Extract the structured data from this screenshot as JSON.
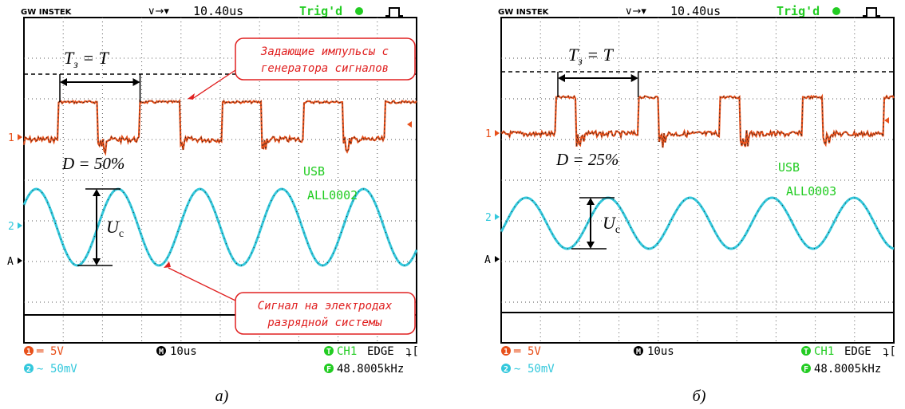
{
  "panels": [
    {
      "brand": "GW INSTEK",
      "horizontal_icon": "∨→▾",
      "time_offset": "10.40us",
      "trigger_status": "Trig'd",
      "ch1_marker": "1",
      "ch2_marker": "2",
      "trigger_marker": "A",
      "period_label": {
        "symbol": "T",
        "subscript": "з",
        "rest": " = T"
      },
      "duty_label": "D = 50%",
      "amplitude_label": {
        "symbol": "U",
        "subscript": "c"
      },
      "usb": "USB",
      "file": "ALL0002",
      "callouts": [
        [
          "Задающие импульсы с",
          "генератора сигналов"
        ],
        [
          "Сигнал на электродах",
          "разрядной системы"
        ]
      ],
      "footer": {
        "ch1_badge": "1",
        "ch1_coupling": "═",
        "ch1_scale": "5V",
        "ch2_badge": "2",
        "ch2_coupling": "∼",
        "ch2_scale": "50mV",
        "time_badge": "M",
        "time_scale": "10us",
        "trig_badge": "T",
        "trig_source": "CH1",
        "trig_mode": "EDGE",
        "trig_slope": "ʇ[",
        "freq_badge": "F",
        "frequency": "48.8005kHz"
      },
      "caption": "а)"
    },
    {
      "brand": "GW INSTEK",
      "horizontal_icon": "∨→▾",
      "time_offset": "10.40us",
      "trigger_status": "Trig'd",
      "ch1_marker": "1",
      "ch2_marker": "2",
      "trigger_marker": "A",
      "period_label": {
        "symbol": "T",
        "subscript": "з",
        "rest": " = T"
      },
      "duty_label": "D = 25%",
      "amplitude_label": {
        "symbol": "U",
        "subscript": "c"
      },
      "usb": "USB",
      "file": "ALL0003",
      "callouts": [],
      "footer": {
        "ch1_badge": "1",
        "ch1_coupling": "═",
        "ch1_scale": "5V",
        "ch2_badge": "2",
        "ch2_coupling": "∼",
        "ch2_scale": "50mV",
        "time_badge": "M",
        "time_scale": "10us",
        "trig_badge": "T",
        "trig_source": "CH1",
        "trig_mode": "EDGE",
        "trig_slope": "ʇ[",
        "freq_badge": "F",
        "frequency": "48.8005kHz"
      },
      "caption": "б)"
    }
  ]
}
